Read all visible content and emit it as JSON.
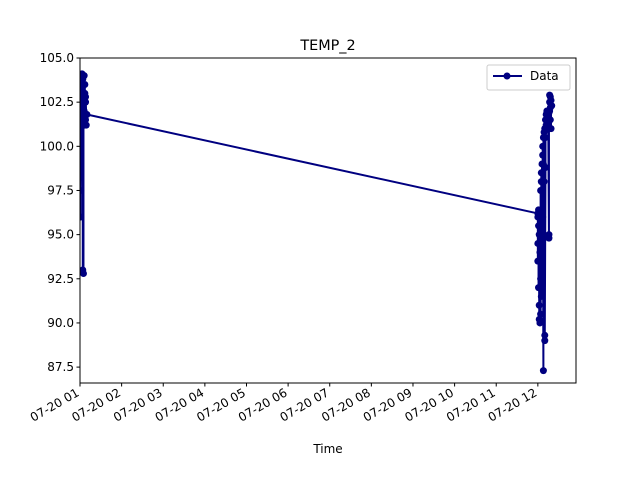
{
  "chart_data": {
    "type": "line",
    "title": "TEMP_2",
    "xlabel": "Time",
    "ylabel": "",
    "x_tick_labels": [
      "07-20 01",
      "07-20 02",
      "07-20 03",
      "07-20 04",
      "07-20 05",
      "07-20 06",
      "07-20 07",
      "07-20 08",
      "07-20 09",
      "07-20 10",
      "07-20 11",
      "07-20 12"
    ],
    "y_tick_labels": [
      "87.5",
      "90.0",
      "92.5",
      "95.0",
      "97.5",
      "100.0",
      "102.5",
      "105.0"
    ],
    "xlim": [
      "07-20 01:00",
      "07-20 12:55"
    ],
    "ylim": [
      86.6,
      105.0
    ],
    "legend_position": "upper right",
    "grid": false,
    "series": [
      {
        "name": "Data",
        "color": "#000080",
        "marker": "circle",
        "points": [
          [
            "07-20 01:00",
            99.5
          ],
          [
            "07-20 01:00",
            101.0
          ],
          [
            "07-20 01:00",
            98.5
          ],
          [
            "07-20 01:00",
            102.0
          ],
          [
            "07-20 01:01",
            96.0
          ],
          [
            "07-20 01:01",
            101.5
          ],
          [
            "07-20 01:01",
            97.5
          ],
          [
            "07-20 01:02",
            102.5
          ],
          [
            "07-20 01:02",
            103.5
          ],
          [
            "07-20 01:02",
            102.0
          ],
          [
            "07-20 01:03",
            104.0
          ],
          [
            "07-20 01:03",
            103.0
          ],
          [
            "07-20 01:03",
            104.1
          ],
          [
            "07-20 01:04",
            102.5
          ],
          [
            "07-20 01:04",
            103.8
          ],
          [
            "07-20 01:04",
            93.0
          ],
          [
            "07-20 01:05",
            92.8
          ],
          [
            "07-20 01:05",
            104.0
          ],
          [
            "07-20 01:05",
            103.0
          ],
          [
            "07-20 01:06",
            101.5
          ],
          [
            "07-20 01:06",
            104.0
          ],
          [
            "07-20 01:06",
            102.0
          ],
          [
            "07-20 01:07",
            103.5
          ],
          [
            "07-20 01:07",
            101.2
          ],
          [
            "07-20 01:07",
            103.0
          ],
          [
            "07-20 01:08",
            102.5
          ],
          [
            "07-20 01:08",
            101.5
          ],
          [
            "07-20 01:08",
            102.8
          ],
          [
            "07-20 01:09",
            101.8
          ],
          [
            "07-20 01:09",
            101.2
          ],
          [
            "07-20 01:10",
            101.8
          ],
          [
            "07-20 12:00",
            96.2
          ],
          [
            "07-20 12:00",
            94.5
          ],
          [
            "07-20 12:00",
            96.0
          ],
          [
            "07-20 12:00",
            93.5
          ],
          [
            "07-20 12:01",
            95.5
          ],
          [
            "07-20 12:01",
            92.0
          ],
          [
            "07-20 12:01",
            96.4
          ],
          [
            "07-20 12:02",
            91.0
          ],
          [
            "07-20 12:02",
            95.0
          ],
          [
            "07-20 12:02",
            90.2
          ],
          [
            "07-20 12:03",
            94.0
          ],
          [
            "07-20 12:03",
            90.0
          ],
          [
            "07-20 12:03",
            96.0
          ],
          [
            "07-20 12:04",
            92.5
          ],
          [
            "07-20 12:04",
            97.5
          ],
          [
            "07-20 12:04",
            90.5
          ],
          [
            "07-20 12:05",
            98.0
          ],
          [
            "07-20 12:05",
            91.5
          ],
          [
            "07-20 12:05",
            98.5
          ],
          [
            "07-20 12:06",
            93.0
          ],
          [
            "07-20 12:06",
            99.0
          ],
          [
            "07-20 12:06",
            94.5
          ],
          [
            "07-20 12:07",
            99.5
          ],
          [
            "07-20 12:07",
            96.0
          ],
          [
            "07-20 12:07",
            100.0
          ],
          [
            "07-20 12:08",
            87.3
          ],
          [
            "07-20 12:08",
            99.0
          ],
          [
            "07-20 12:08",
            100.5
          ],
          [
            "07-20 12:09",
            98.0
          ],
          [
            "07-20 12:09",
            100.8
          ],
          [
            "07-20 12:10",
            89.0
          ],
          [
            "07-20 12:10",
            101.0
          ],
          [
            "07-20 12:10",
            89.3
          ],
          [
            "07-20 12:11",
            98.8
          ],
          [
            "07-20 12:11",
            100.5
          ],
          [
            "07-20 12:11",
            101.5
          ],
          [
            "07-20 12:12",
            101.0
          ],
          [
            "07-20 12:12",
            101.8
          ],
          [
            "07-20 12:12",
            101.2
          ],
          [
            "07-20 12:13",
            102.0
          ],
          [
            "07-20 12:13",
            101.5
          ],
          [
            "07-20 12:13",
            101.9
          ],
          [
            "07-20 12:14",
            101.6
          ],
          [
            "07-20 12:14",
            101.7
          ],
          [
            "07-20 12:15",
            101.5
          ],
          [
            "07-20 12:15",
            101.8
          ],
          [
            "07-20 12:15",
            101.6
          ],
          [
            "07-20 12:16",
            94.8
          ],
          [
            "07-20 12:16",
            95.0
          ],
          [
            "07-20 12:16",
            101.9
          ],
          [
            "07-20 12:17",
            102.5
          ],
          [
            "07-20 12:17",
            102.9
          ],
          [
            "07-20 12:17",
            102.0
          ],
          [
            "07-20 12:18",
            102.8
          ],
          [
            "07-20 12:18",
            101.5
          ],
          [
            "07-20 12:18",
            102.2
          ],
          [
            "07-20 12:19",
            101.0
          ],
          [
            "07-20 12:19",
            102.6
          ],
          [
            "07-20 12:20",
            102.3
          ]
        ]
      }
    ]
  }
}
